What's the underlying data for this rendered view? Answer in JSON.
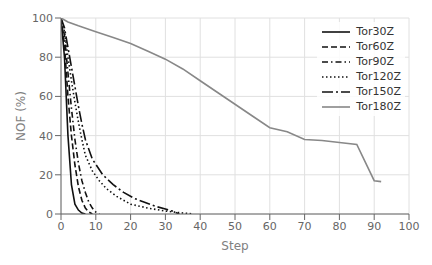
{
  "chart_data": {
    "type": "line",
    "xlabel": "Step",
    "ylabel": "NOF (%)",
    "xlim": [
      0,
      100
    ],
    "ylim": [
      0,
      100
    ],
    "xticks": [
      0,
      10,
      20,
      30,
      40,
      50,
      60,
      70,
      80,
      90,
      100
    ],
    "yticks": [
      0,
      20,
      40,
      60,
      80,
      100
    ],
    "grid": true,
    "legend": "upper right",
    "series": [
      {
        "name": "Tor30Z",
        "color": "#111111",
        "line_style": "solid",
        "x": [
          0,
          1,
          2,
          3,
          4,
          5,
          6,
          7
        ],
        "values": [
          100,
          80,
          40,
          15,
          5,
          2,
          0.5,
          0
        ]
      },
      {
        "name": "Tor60Z",
        "color": "#111111",
        "line_style": "dashed",
        "x": [
          0,
          1,
          2,
          3,
          4,
          5,
          6,
          7,
          8,
          9
        ],
        "values": [
          100,
          86,
          60,
          40,
          25,
          14,
          7,
          3,
          1,
          0
        ]
      },
      {
        "name": "Tor90Z",
        "color": "#111111",
        "line_style": "dashdot",
        "x": [
          0,
          1,
          2,
          3,
          4,
          5,
          6,
          7,
          8,
          9,
          10,
          11
        ],
        "values": [
          100,
          91,
          72,
          54,
          38,
          26,
          17,
          11,
          6,
          3,
          1,
          0
        ]
      },
      {
        "name": "Tor120Z",
        "color": "#111111",
        "line_style": "dotted",
        "x": [
          0,
          1,
          2,
          3,
          4,
          5,
          6,
          7,
          9,
          11,
          13,
          16,
          20,
          25,
          30,
          35,
          37,
          38
        ],
        "values": [
          100,
          93,
          80,
          68,
          57,
          47,
          38,
          30,
          22,
          17,
          13,
          9,
          5,
          3,
          1.5,
          0.5,
          0.2,
          0
        ]
      },
      {
        "name": "Tor150Z",
        "color": "#111111",
        "line_style": "longdashdot",
        "x": [
          0,
          1,
          2,
          3,
          4,
          5,
          6,
          7,
          9,
          12,
          15,
          18,
          21,
          24,
          27,
          30,
          32,
          34
        ],
        "values": [
          100,
          95,
          85,
          75,
          65,
          55,
          46,
          38,
          28,
          20,
          15,
          11,
          8,
          6,
          4,
          2.5,
          1.5,
          0
        ]
      },
      {
        "name": "Tor180Z",
        "color": "#888888",
        "line_style": "solid",
        "x": [
          0,
          2,
          5,
          10,
          15,
          20,
          25,
          30,
          35,
          40,
          45,
          50,
          55,
          60,
          65,
          70,
          75,
          80,
          85,
          90,
          92
        ],
        "values": [
          100,
          98,
          96,
          93,
          90,
          87,
          83,
          79,
          74,
          68,
          62,
          56,
          50,
          44,
          42,
          38,
          37.5,
          36.5,
          35.5,
          17,
          16.5
        ]
      }
    ]
  }
}
